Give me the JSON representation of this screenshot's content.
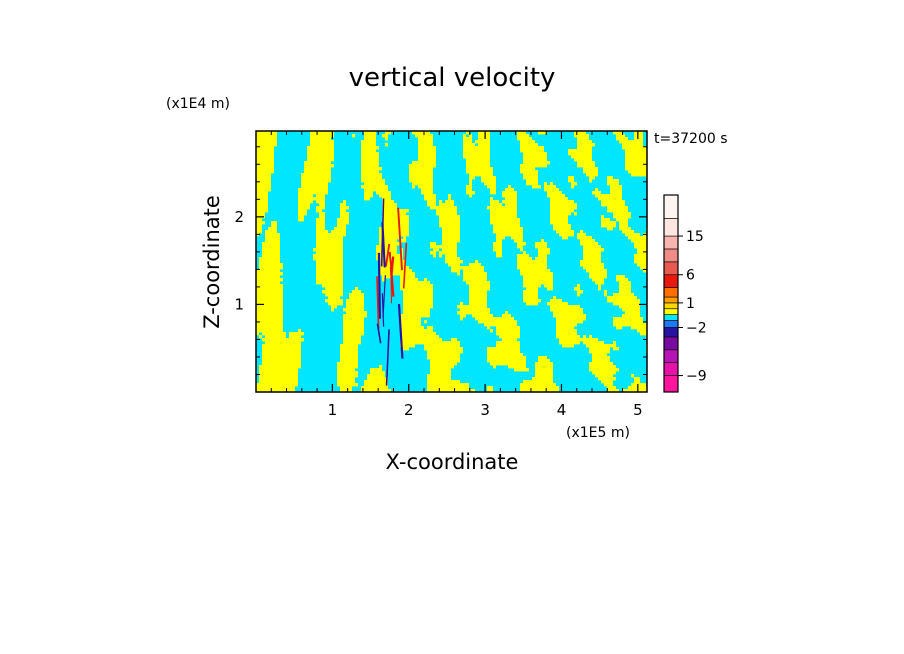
{
  "chart_data": {
    "type": "heatmap",
    "title": "vertical velocity",
    "xlabel": "X-coordinate",
    "ylabel": "Z-coordinate",
    "x_unit": "(x1E5 m)",
    "y_unit": "(x1E4 m)",
    "time_label": "t=37200 s",
    "xlim": [
      0,
      5.12
    ],
    "ylim": [
      0,
      2.98
    ],
    "x_ticks": [
      1,
      2,
      3,
      4,
      5
    ],
    "x_tick_labels": [
      "1",
      "2",
      "3",
      "4",
      "5"
    ],
    "y_ticks": [
      1,
      2
    ],
    "y_tick_labels": [
      "1",
      "2"
    ],
    "field_colors": {
      "background": "#00e6ff",
      "positive": "#ffff00",
      "strong_positive": "#e8180e",
      "strong_negative": "#2814a0"
    },
    "colorbar": {
      "levels": [
        -12,
        -9,
        -6,
        -4,
        -3,
        -2,
        -1,
        0,
        0.5,
        1,
        2,
        4,
        6,
        9,
        12,
        15,
        20,
        25
      ],
      "colors": [
        "#ff14a0",
        "#e612a8",
        "#b414b4",
        "#780aa0",
        "#2814a0",
        "#1e78ff",
        "#00e6ff",
        "#ffff00",
        "#ffd700",
        "#ffa000",
        "#ff6e00",
        "#e8180e",
        "#e85a50",
        "#f08c87",
        "#f8b4ae",
        "#fde6e0",
        "#fff5f0"
      ],
      "tick_values": [
        15,
        6,
        1,
        -2,
        -9
      ],
      "tick_labels": [
        "15",
        "6",
        "1",
        "−2",
        "−9"
      ]
    }
  }
}
